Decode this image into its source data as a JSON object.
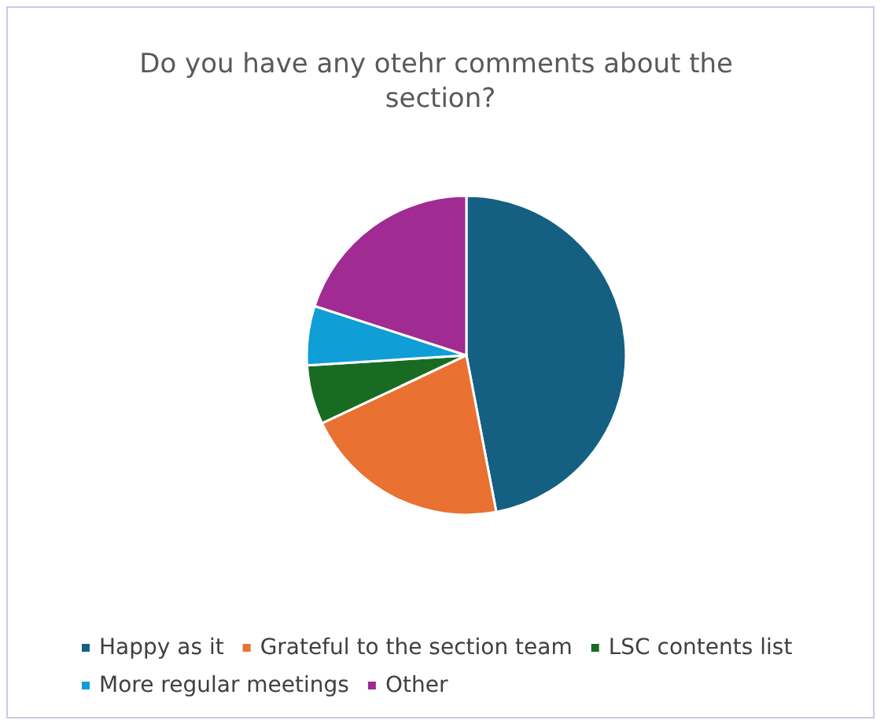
{
  "chart_data": {
    "type": "pie",
    "title": "Do you have any otehr comments about the section?",
    "categories": [
      "Happy as it",
      "Grateful to the section team",
      "LSC contents list",
      "More regular meetings",
      "Other"
    ],
    "values": [
      47,
      21,
      6,
      6,
      20
    ],
    "colors": [
      "#156082",
      "#e97132",
      "#196b24",
      "#0f9ed5",
      "#a02b93"
    ],
    "legend": "bottom"
  }
}
